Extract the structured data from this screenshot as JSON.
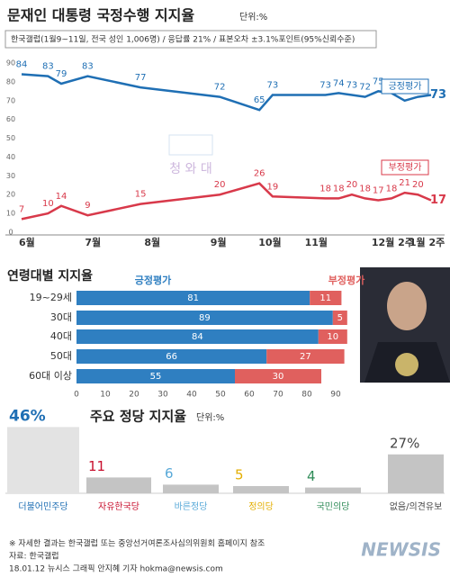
{
  "chart_data": [
    {
      "type": "line",
      "title": "문재인 대통령 국정수행 지지율",
      "unit": "단위:%",
      "subtitle": "한국갤럽(1월9~11일, 전국 성인 1,006명) / 응답률 21% / 표본오차 ±3.1%포인트(95%신뢰수준)",
      "watermark": "청 와 대",
      "x": [
        0,
        2,
        3,
        5,
        9,
        15,
        18,
        19,
        23,
        24,
        25,
        26,
        27,
        28,
        29,
        30,
        31
      ],
      "xlim": [
        0,
        31
      ],
      "xticks": [
        {
          "value": 0.4,
          "label": "6월"
        },
        {
          "value": 5.4,
          "label": "7월"
        },
        {
          "value": 9.9,
          "label": "8월"
        },
        {
          "value": 14.9,
          "label": "9월"
        },
        {
          "value": 18.8,
          "label": "10월"
        },
        {
          "value": 22.3,
          "label": "11월"
        },
        {
          "value": 28.1,
          "label": "12월 2주"
        },
        {
          "value": 30.7,
          "label": "1월 2주"
        }
      ],
      "ylim": [
        0,
        90
      ],
      "yticks": [
        0,
        10,
        20,
        30,
        40,
        50,
        60,
        70,
        80,
        90
      ],
      "series": [
        {
          "name": "긍정평가",
          "color": "#1f6fb4",
          "values": [
            84,
            83,
            79,
            83,
            77,
            72,
            65,
            73,
            73,
            74,
            73,
            72,
            75,
            74,
            70,
            72,
            73
          ]
        },
        {
          "name": "부정평가",
          "color": "#d8394a",
          "values": [
            7,
            10,
            14,
            9,
            15,
            20,
            26,
            19,
            18,
            18,
            20,
            18,
            17,
            18,
            21,
            20,
            17
          ]
        }
      ]
    },
    {
      "type": "stacked_barh",
      "title": "연령대별 지지율",
      "categories": [
        "19~29세",
        "30대",
        "40대",
        "50대",
        "60대 이상"
      ],
      "xlim": [
        0,
        90
      ],
      "xticks": [
        0,
        10,
        20,
        30,
        40,
        50,
        60,
        70,
        80,
        90
      ],
      "series": [
        {
          "name": "긍정평가",
          "color": "#2f7fc1",
          "values": [
            81,
            89,
            84,
            66,
            55
          ]
        },
        {
          "name": "부정평가",
          "color": "#e0605e",
          "values": [
            11,
            5,
            10,
            27,
            30
          ]
        }
      ]
    },
    {
      "type": "bar",
      "title": "주요 정당 지지율",
      "unit": "단위:%",
      "categories": [
        "더불어민주당",
        "자유한국당",
        "바른정당",
        "정의당",
        "국민의당",
        "없음/의견유보"
      ],
      "values": [
        46,
        11,
        6,
        5,
        4,
        27
      ],
      "value_labels": [
        "46%",
        "11",
        "6",
        "5",
        "4",
        "27%"
      ],
      "colors": [
        "#1f6fb4",
        "#c8102e",
        "#58a9d8",
        "#e3ae00",
        "#2e8b57",
        "#444444"
      ]
    }
  ],
  "footer": {
    "note": "※ 자세한 결과는 한국갤럽 또는 중앙선거여론조사심의위원회 홈페이지 참조",
    "source": "자료: 한국갤럽",
    "credit": "18.01.12 뉴시스 그래픽 안지혜 기자 hokma@newsis.com",
    "logo": "NEWSIS"
  }
}
